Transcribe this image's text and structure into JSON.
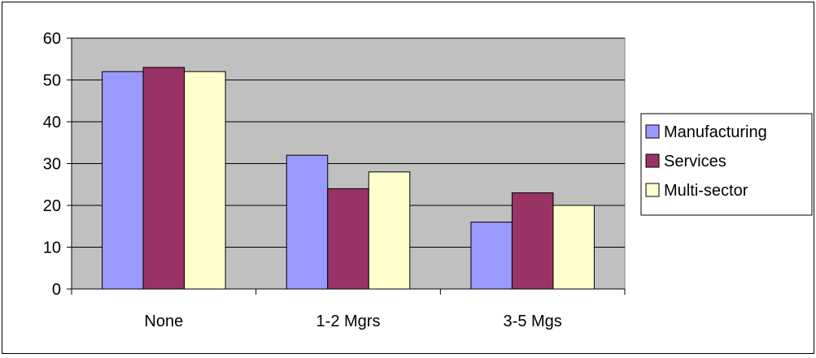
{
  "chart_data": {
    "type": "bar",
    "title": "",
    "xlabel": "",
    "ylabel": "",
    "categories": [
      "None",
      "1-2 Mgrs",
      "3-5 Mgs"
    ],
    "series": [
      {
        "name": "Manufacturing",
        "values": [
          52,
          32,
          16
        ],
        "color": "#9999ff"
      },
      {
        "name": "Services",
        "values": [
          53,
          24,
          23
        ],
        "color": "#993366"
      },
      {
        "name": "Multi-sector",
        "values": [
          52,
          28,
          20
        ],
        "color": "#ffffcc"
      }
    ],
    "ylim": [
      0,
      60
    ],
    "yticks": [
      0,
      10,
      20,
      30,
      40,
      50,
      60
    ],
    "grid": true,
    "plot_background": "#c0c0c0",
    "legend_position": "right"
  }
}
